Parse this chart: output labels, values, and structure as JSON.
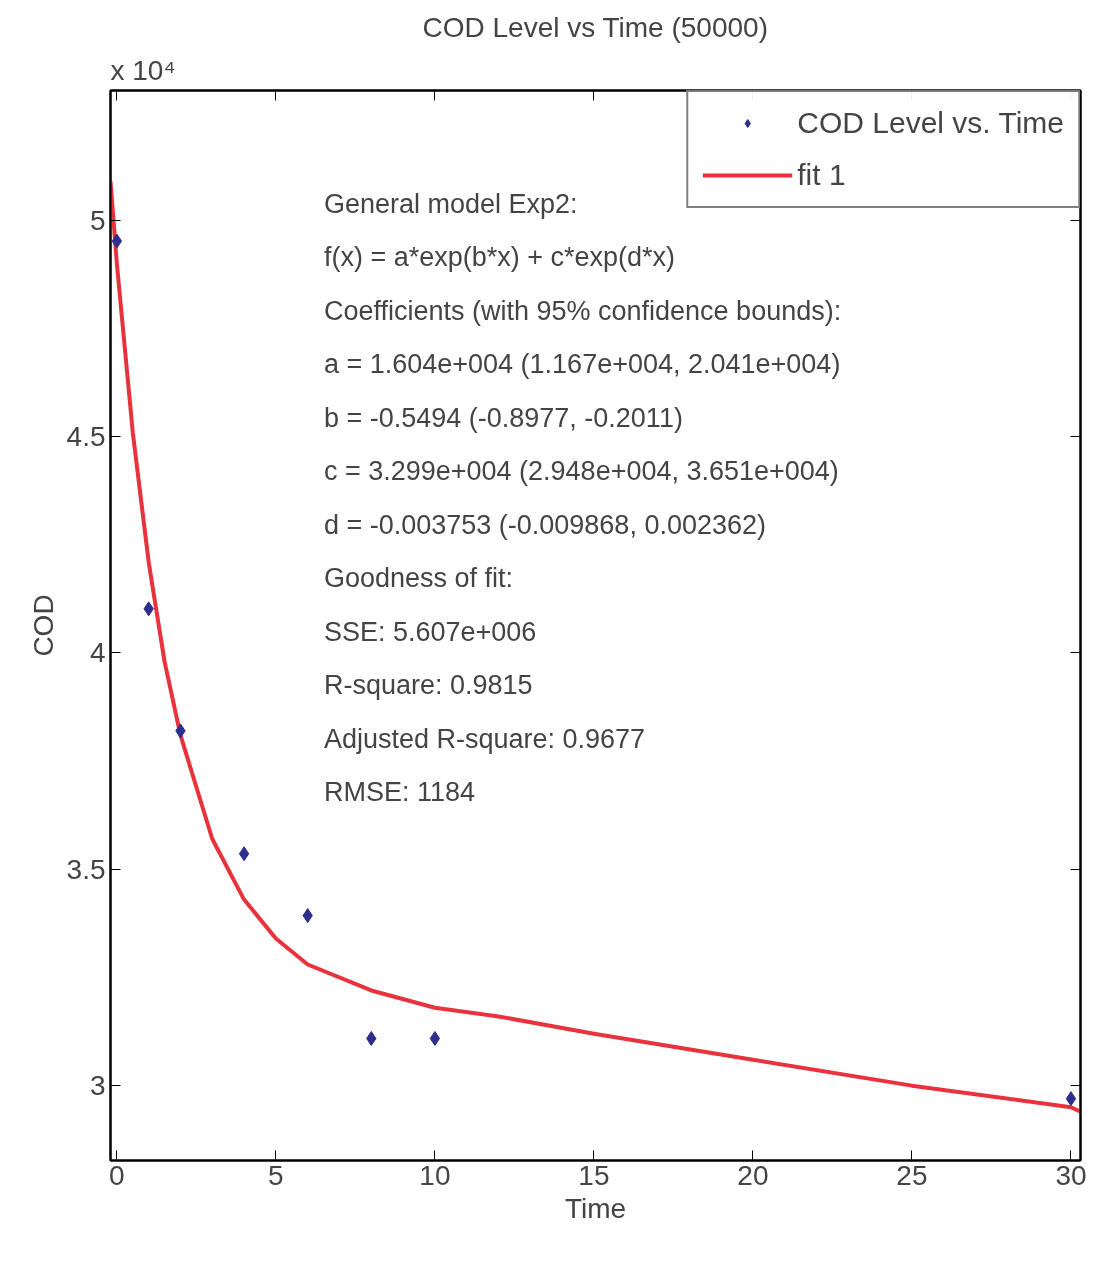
{
  "chart_data": {
    "type": "scatter",
    "title": "COD Level vs Time (50000)",
    "xlabel": "Time",
    "ylabel": "COD",
    "xlim": [
      -0.2,
      30.3
    ],
    "ylim": [
      2.827,
      5.3
    ],
    "xticks": [
      0,
      5,
      10,
      15,
      20,
      25,
      30
    ],
    "yticks": [
      3,
      3.5,
      4,
      4.5,
      5
    ],
    "grid": false,
    "legend": "top right",
    "series": [
      {
        "name": "COD Level vs. Time",
        "marker": "diamond",
        "color": "#2e2e8c",
        "x": [
          0,
          1,
          2,
          4,
          6,
          8,
          10,
          30
        ],
        "values": [
          4.952,
          4.102,
          3.82,
          3.536,
          3.393,
          3.109,
          3.109,
          2.97
        ]
      },
      {
        "name": "fit 1",
        "type": "line",
        "line_style": "solid",
        "color": "#e8323c",
        "x": [
          -0.2,
          0,
          0.5,
          1,
          1.5,
          2,
          3,
          4,
          5,
          6,
          8,
          10,
          12,
          15,
          20,
          25,
          30,
          30.3
        ],
        "values": [
          5.09,
          4.9,
          4.51,
          4.21,
          3.98,
          3.81,
          3.57,
          3.43,
          3.34,
          3.28,
          3.22,
          3.18,
          3.16,
          3.12,
          3.06,
          3.0,
          2.95,
          2.94
        ]
      }
    ],
    "annotations": [
      "x 10⁴",
      "General model Exp2:",
      "     f(x) = a*exp(b*x) + c*exp(d*x)",
      "Coefficients (with 95% confidence bounds):",
      "     a =  1.604e+004  (1.167e+004, 2.041e+004)",
      "     b =     -0.5494  (-0.8977, -0.2011)",
      "     c =  3.299e+004  (2.948e+004, 3.651e+004)",
      "     d =  -0.003753  (-0.009868, 0.002362)",
      "Goodness of fit:",
      "  SSE: 5.607e+006",
      "  R-square: 0.9815",
      "  Adjusted R-square: 0.9677",
      "  RMSE: 1184"
    ]
  }
}
